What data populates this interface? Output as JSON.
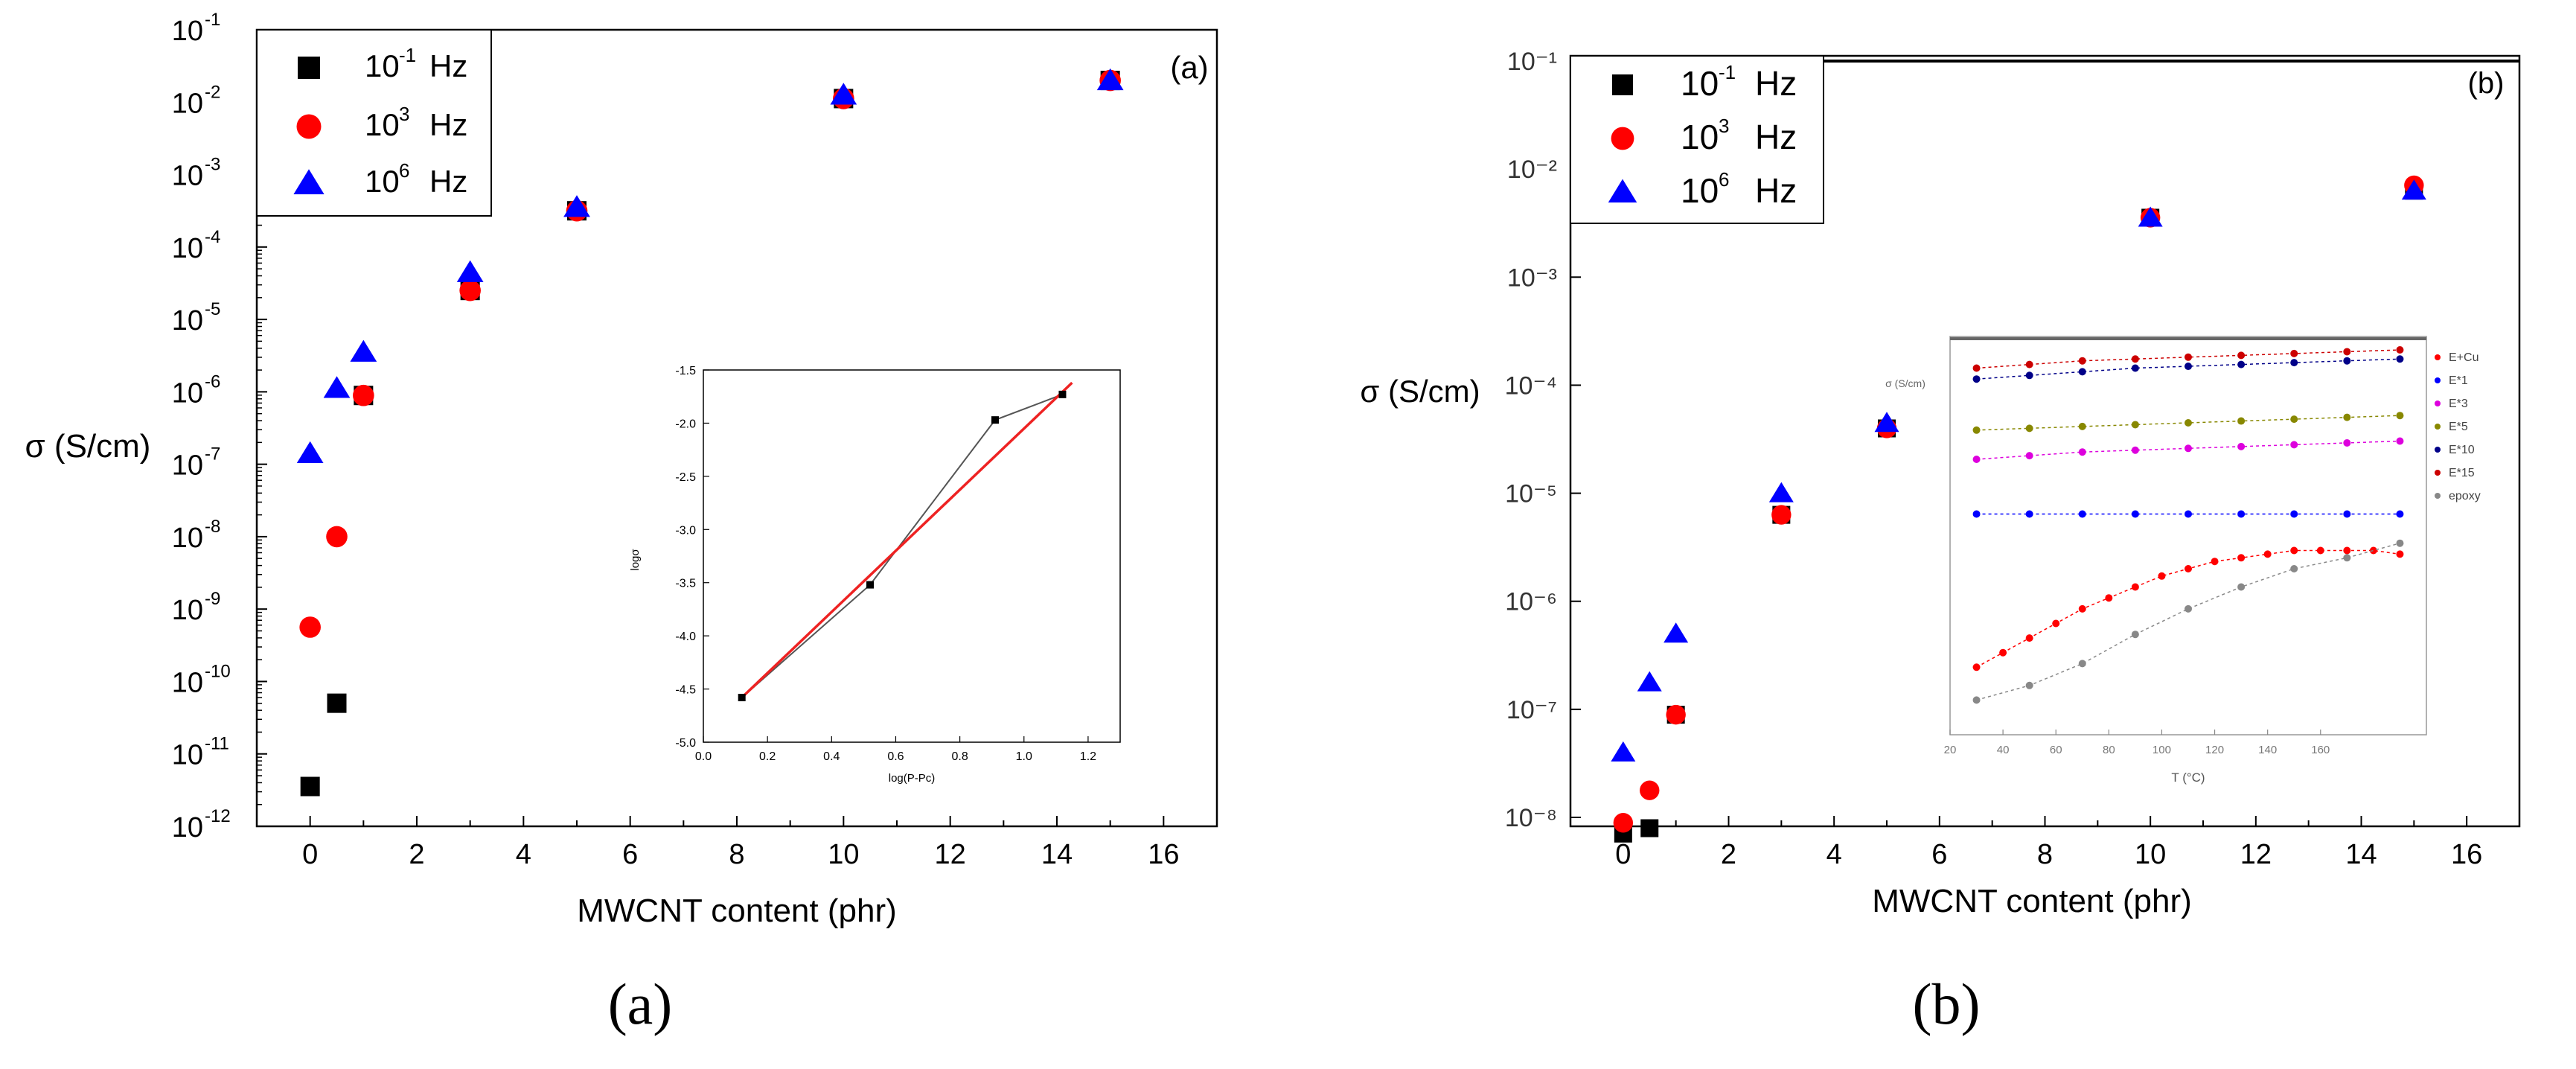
{
  "colors": {
    "black": "#000000",
    "red": "#ff0000",
    "blue": "#0000ff",
    "inset_red_line": "#ee2222",
    "inset_gray_line": "#555555"
  },
  "captions": {
    "a": "(a)",
    "b": "(b)"
  },
  "chart_data": [
    {
      "type": "scatter",
      "panel": "(a)",
      "xlabel": "MWCNT content (phr)",
      "ylabel": "σ (S/cm)",
      "xlim": [
        -1,
        17
      ],
      "xticks": [
        0,
        2,
        4,
        6,
        8,
        10,
        12,
        14,
        16
      ],
      "ylim_exp": [
        -12,
        -1
      ],
      "y_scale": "log",
      "legend_position": "top-left",
      "legend": [
        {
          "base": "10",
          "exp": "-1",
          "unit": "Hz",
          "marker": "square",
          "color": "#000000"
        },
        {
          "base": "10",
          "exp": "3",
          "unit": "Hz",
          "marker": "circle",
          "color": "#ff0000"
        },
        {
          "base": "10",
          "exp": "6",
          "unit": "Hz",
          "marker": "triangle",
          "color": "#0000ff"
        }
      ],
      "series": [
        {
          "name": "10^-1 Hz",
          "marker": "square",
          "color": "#000000",
          "x": [
            0,
            0.5,
            1,
            3,
            5,
            10,
            15
          ],
          "y_exp": [
            -11.45,
            -10.3,
            -6.05,
            -4.6,
            -3.5,
            -1.95,
            -1.7
          ]
        },
        {
          "name": "10^3 Hz",
          "marker": "circle",
          "color": "#ff0000",
          "x": [
            0,
            0.5,
            1,
            3,
            5,
            10,
            15
          ],
          "y_exp": [
            -9.25,
            -8.0,
            -6.05,
            -4.6,
            -3.5,
            -1.95,
            -1.7
          ]
        },
        {
          "name": "10^6 Hz",
          "marker": "triangle",
          "color": "#0000ff",
          "x": [
            0,
            0.5,
            1,
            3,
            5,
            10,
            15
          ],
          "y_exp": [
            -6.85,
            -5.95,
            -5.45,
            -4.35,
            -3.45,
            -1.9,
            -1.7
          ]
        }
      ],
      "inset": {
        "type": "line",
        "xlabel": "log(P-Pc)",
        "ylabel": "logσ",
        "xlim": [
          0.0,
          1.3
        ],
        "ylim": [
          -5.0,
          -1.5
        ],
        "xticks": [
          "0.0",
          "0.2",
          "0.4",
          "0.6",
          "0.8",
          "1.0",
          "1.2"
        ],
        "yticks": [
          "-1.5",
          "-2.0",
          "-2.5",
          "-3.0",
          "-3.5",
          "-4.0",
          "-4.5",
          "-5.0"
        ],
        "points": {
          "x": [
            0.12,
            0.52,
            0.91,
            1.12
          ],
          "y": [
            -4.58,
            -3.52,
            -1.97,
            -1.73
          ]
        },
        "fit": {
          "x": [
            0.12,
            1.15
          ],
          "y": [
            -4.58,
            -1.62
          ]
        }
      }
    },
    {
      "type": "scatter",
      "panel": "(b)",
      "xlabel": "MWCNT content (phr)",
      "ylabel": "σ (S/cm)",
      "xlim": [
        -1,
        17
      ],
      "xticks": [
        0,
        2,
        4,
        6,
        8,
        10,
        12,
        14,
        16
      ],
      "y_scale": "log",
      "y_tick_labels": [
        "10⁻¹",
        "10⁻²",
        "10⁻³",
        "10⁻⁴",
        "10⁻⁵",
        "10⁻⁶",
        "10⁻⁷",
        "10⁻⁸"
      ],
      "legend_position": "top-left",
      "legend": [
        {
          "base": "10",
          "exp": "-1",
          "unit": "Hz",
          "marker": "square",
          "color": "#000000"
        },
        {
          "base": "10",
          "exp": "3",
          "unit": "Hz",
          "marker": "circle",
          "color": "#ff0000"
        },
        {
          "base": "10",
          "exp": "6",
          "unit": "Hz",
          "marker": "triangle",
          "color": "#0000ff"
        }
      ],
      "series": [
        {
          "name": "10^-1 Hz",
          "marker": "square",
          "color": "#000000",
          "x": [
            0,
            0.5,
            1,
            3,
            5,
            10,
            15
          ],
          "y_pos": [
            7.15,
            7.1,
            6.05,
            4.2,
            3.4,
            1.45,
            1.2
          ]
        },
        {
          "name": "10^3 Hz",
          "marker": "circle",
          "color": "#ff0000",
          "x": [
            0,
            0.5,
            1,
            3,
            5,
            10,
            15
          ],
          "y_pos": [
            7.05,
            6.75,
            6.05,
            4.2,
            3.4,
            1.45,
            1.15
          ]
        },
        {
          "name": "10^6 Hz",
          "marker": "triangle",
          "color": "#0000ff",
          "x": [
            0,
            0.5,
            1,
            3,
            5,
            10,
            15
          ],
          "y_pos": [
            6.4,
            5.75,
            5.3,
            4.0,
            3.35,
            1.45,
            1.2
          ]
        }
      ],
      "inset": {
        "type": "line",
        "xlabel": "T (°C)",
        "ylabel": "σ (S/cm)",
        "xlim": [
          20,
          200
        ],
        "xticks": [
          "20",
          "40",
          "60",
          "80",
          "100",
          "120",
          "140",
          "160"
        ],
        "legend": [
          "E+Cu",
          "E*1",
          "E*3",
          "E*5",
          "E*10",
          "E*15",
          "epoxy"
        ],
        "series": [
          {
            "name": "E*15",
            "color": "#cc0000",
            "x": [
              30,
              50,
              70,
              90,
              110,
              130,
              150,
              170,
              190
            ],
            "y": [
              0.95,
              0.96,
              0.97,
              0.975,
              0.98,
              0.985,
              0.99,
              0.995,
              1.0
            ]
          },
          {
            "name": "E*10",
            "color": "#000088",
            "x": [
              30,
              50,
              70,
              90,
              110,
              130,
              150,
              170,
              190
            ],
            "y": [
              0.92,
              0.93,
              0.94,
              0.95,
              0.955,
              0.96,
              0.965,
              0.97,
              0.975
            ]
          },
          {
            "name": "E*5",
            "color": "#888800",
            "x": [
              30,
              50,
              70,
              90,
              110,
              130,
              150,
              170,
              190
            ],
            "y": [
              0.78,
              0.785,
              0.79,
              0.795,
              0.8,
              0.805,
              0.81,
              0.815,
              0.82
            ]
          },
          {
            "name": "E*3",
            "color": "#dd00dd",
            "x": [
              30,
              50,
              70,
              90,
              110,
              130,
              150,
              170,
              190
            ],
            "y": [
              0.7,
              0.71,
              0.72,
              0.725,
              0.73,
              0.735,
              0.74,
              0.745,
              0.75
            ]
          },
          {
            "name": "E*1",
            "color": "#0000ff",
            "x": [
              30,
              50,
              70,
              90,
              110,
              130,
              150,
              170,
              190
            ],
            "y": [
              0.55,
              0.55,
              0.55,
              0.55,
              0.55,
              0.55,
              0.55,
              0.55,
              0.55
            ]
          },
          {
            "name": "E+Cu",
            "color": "#ff0000",
            "x": [
              30,
              40,
              50,
              60,
              70,
              80,
              90,
              100,
              110,
              120,
              130,
              140,
              150,
              160,
              170,
              180,
              190
            ],
            "y": [
              0.13,
              0.17,
              0.21,
              0.25,
              0.29,
              0.32,
              0.35,
              0.38,
              0.4,
              0.42,
              0.43,
              0.44,
              0.45,
              0.45,
              0.45,
              0.45,
              0.44
            ]
          },
          {
            "name": "epoxy",
            "color": "#888888",
            "x": [
              30,
              50,
              70,
              90,
              110,
              130,
              150,
              170,
              190
            ],
            "y": [
              0.04,
              0.08,
              0.14,
              0.22,
              0.29,
              0.35,
              0.4,
              0.43,
              0.47
            ]
          }
        ]
      }
    }
  ]
}
